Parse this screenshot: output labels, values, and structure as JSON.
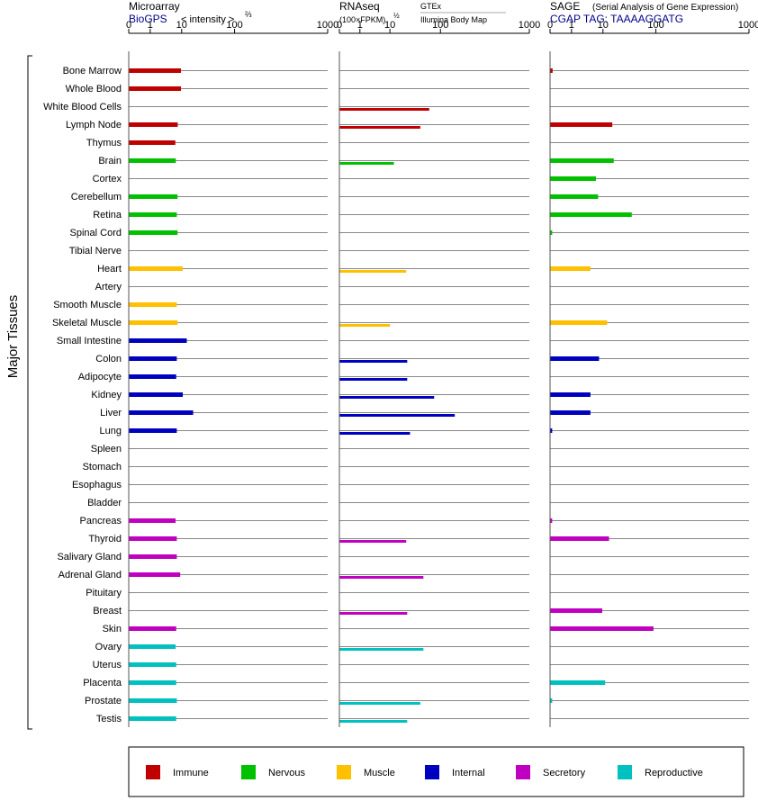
{
  "chart_data": {
    "type": "bar",
    "side_label": "Major Tissues",
    "axis_scale": "log",
    "ticks": [
      0,
      1,
      10,
      100,
      1000
    ],
    "tick_labels": [
      "0",
      "1",
      "10",
      "100",
      "1000"
    ],
    "colors": {
      "Immune": "#c00000",
      "Nervous": "#00c000",
      "Muscle": "#ffc000",
      "Internal": "#0000c0",
      "Secretory": "#c000c0",
      "Reproductive": "#00c0c0"
    },
    "legend": [
      "Immune",
      "Nervous",
      "Muscle",
      "Internal",
      "Secretory",
      "Reproductive"
    ],
    "tissues": [
      {
        "name": "Bone Marrow",
        "system": "Immune"
      },
      {
        "name": "Whole Blood",
        "system": "Immune"
      },
      {
        "name": "White Blood Cells",
        "system": "Immune"
      },
      {
        "name": "Lymph Node",
        "system": "Immune"
      },
      {
        "name": "Thymus",
        "system": "Immune"
      },
      {
        "name": "Brain",
        "system": "Nervous"
      },
      {
        "name": "Cortex",
        "system": "Nervous"
      },
      {
        "name": "Cerebellum",
        "system": "Nervous"
      },
      {
        "name": "Retina",
        "system": "Nervous"
      },
      {
        "name": "Spinal Cord",
        "system": "Nervous"
      },
      {
        "name": "Tibial Nerve",
        "system": "Nervous"
      },
      {
        "name": "Heart",
        "system": "Muscle"
      },
      {
        "name": "Artery",
        "system": "Muscle"
      },
      {
        "name": "Smooth Muscle",
        "system": "Muscle"
      },
      {
        "name": "Skeletal Muscle",
        "system": "Muscle"
      },
      {
        "name": "Small Intestine",
        "system": "Internal"
      },
      {
        "name": "Colon",
        "system": "Internal"
      },
      {
        "name": "Adipocyte",
        "system": "Internal"
      },
      {
        "name": "Kidney",
        "system": "Internal"
      },
      {
        "name": "Liver",
        "system": "Internal"
      },
      {
        "name": "Lung",
        "system": "Internal"
      },
      {
        "name": "Spleen",
        "system": "Internal"
      },
      {
        "name": "Stomach",
        "system": "Internal"
      },
      {
        "name": "Esophagus",
        "system": "Internal"
      },
      {
        "name": "Bladder",
        "system": "Internal"
      },
      {
        "name": "Pancreas",
        "system": "Secretory"
      },
      {
        "name": "Thyroid",
        "system": "Secretory"
      },
      {
        "name": "Salivary Gland",
        "system": "Secretory"
      },
      {
        "name": "Adrenal Gland",
        "system": "Secretory"
      },
      {
        "name": "Pituitary",
        "system": "Secretory"
      },
      {
        "name": "Breast",
        "system": "Secretory"
      },
      {
        "name": "Skin",
        "system": "Secretory"
      },
      {
        "name": "Ovary",
        "system": "Reproductive"
      },
      {
        "name": "Uterus",
        "system": "Reproductive"
      },
      {
        "name": "Placenta",
        "system": "Reproductive"
      },
      {
        "name": "Prostate",
        "system": "Reproductive"
      },
      {
        "name": "Testis",
        "system": "Reproductive"
      }
    ],
    "panels": [
      {
        "id": "microarray",
        "title": "Microarray",
        "subtitle": "BioGPS",
        "unit_label": "< intensity >",
        "unit_exponent": "⅔",
        "values": [
          9.5,
          9.5,
          0,
          7.5,
          6.3,
          6.5,
          0,
          7.4,
          7,
          7.4,
          0,
          10.5,
          0,
          7,
          7.4,
          12.5,
          7,
          6.7,
          10.5,
          16.5,
          7,
          0,
          0,
          0,
          0,
          6.4,
          7,
          7,
          9,
          0,
          0,
          6.7,
          6.4,
          6.7,
          6.7,
          7,
          6.7
        ],
        "style": "center"
      },
      {
        "id": "rnaseq",
        "title": "RNAseq",
        "unit_label": "(100×FPKM)",
        "unit_exponent": "½",
        "source_upper": "GTEx",
        "source_lower": "Illumina Body Map",
        "values_gtex": [
          0,
          0,
          0,
          0,
          0,
          0,
          0,
          0,
          0,
          0,
          0,
          0,
          0,
          0,
          0,
          0,
          0,
          0,
          0,
          0,
          0,
          0,
          0,
          0,
          0,
          0,
          0,
          0,
          0,
          0,
          0,
          0,
          0,
          0,
          0,
          0,
          0
        ],
        "values_ibm": [
          0,
          0,
          60,
          40,
          0,
          12,
          0,
          0,
          0,
          0,
          0,
          21,
          0,
          0,
          10,
          0,
          22,
          22,
          75,
          145,
          25,
          0,
          0,
          0,
          0,
          0,
          21,
          0,
          46,
          0,
          22,
          0,
          46,
          0,
          0,
          40,
          22
        ],
        "style": "split"
      },
      {
        "id": "sage",
        "title": "SAGE",
        "subtitle_note": "(Serial Analysis of Gene Expression)",
        "tag_label": "CGAP TAG: TAAAAGGATG",
        "values": [
          0.12,
          0,
          0,
          15,
          0,
          16,
          6,
          7,
          35,
          0.1,
          0,
          4,
          0,
          0,
          12,
          0,
          7.5,
          0,
          4,
          4,
          0.1,
          0,
          0,
          0,
          0,
          0.1,
          13,
          0,
          0,
          0,
          9.5,
          90,
          0,
          0,
          11,
          0.1,
          0
        ],
        "style": "center"
      }
    ]
  }
}
